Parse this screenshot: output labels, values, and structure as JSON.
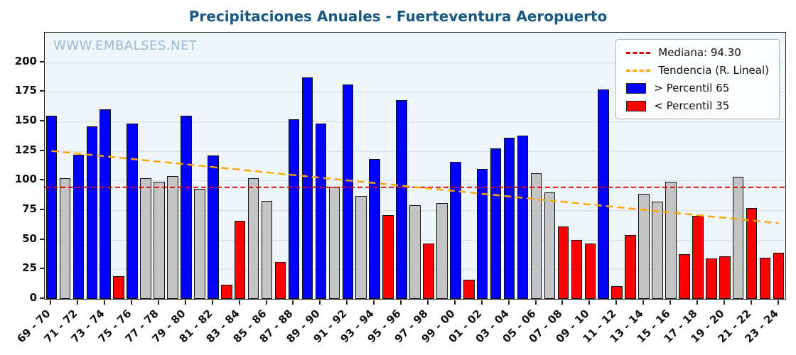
{
  "title": "Precipitaciones Anuales - Fuerteventura Aeropuerto",
  "watermark": "WWW.EMBALSES.NET",
  "legend": {
    "median_label": "Mediana: 94.30",
    "trend_label": "Tendencia (R. Lineal)",
    "above_label": "> Percentil 65",
    "below_label": "< Percentil 35"
  },
  "colors": {
    "above": "#0000ff",
    "below": "#ff0000",
    "normal": "#c4c4c4",
    "median_line": "#e00000",
    "trend_line": "#ffa500",
    "title": "#19587f",
    "watermark": "#7fa8c4",
    "plot_background": "#eef6f9"
  },
  "chart_data": {
    "type": "bar",
    "title": "Precipitaciones Anuales - Fuerteventura Aeropuerto",
    "xlabel": "",
    "ylabel": "",
    "ylim": [
      0,
      225
    ],
    "yticks": [
      0,
      25,
      50,
      75,
      100,
      125,
      150,
      175,
      200
    ],
    "grid": "horizontal",
    "legend_position": "upper right",
    "median": 94.3,
    "trend_line": {
      "y_start": 125,
      "y_end": 64
    },
    "x_tick_labels": [
      "69 - 70",
      "71 - 72",
      "73 - 74",
      "75 - 76",
      "77 - 78",
      "79 - 80",
      "81 - 82",
      "83 - 84",
      "85 - 86",
      "87 - 88",
      "89 - 90",
      "91 - 92",
      "93 - 94",
      "95 - 96",
      "97 - 98",
      "99 - 00",
      "01 - 02",
      "03 - 04",
      "05 - 06",
      "07 - 08",
      "09 - 10",
      "11 - 12",
      "13 - 14",
      "15 - 16",
      "17 - 18",
      "19 - 20",
      "21 - 22",
      "23 - 24"
    ],
    "x_tick_every_n_bars": 2,
    "values": [
      155,
      102,
      122,
      146,
      160,
      19,
      148,
      102,
      99,
      104,
      155,
      93,
      121,
      12,
      66,
      102,
      83,
      31,
      152,
      187,
      148,
      95,
      181,
      87,
      118,
      71,
      168,
      79,
      47,
      81,
      116,
      16,
      110,
      127,
      136,
      138,
      106,
      90,
      61,
      50,
      47,
      177,
      11,
      54,
      89,
      82,
      99,
      38,
      70,
      34,
      36,
      103,
      77,
      35,
      39
    ],
    "classes": [
      "above",
      "normal",
      "above",
      "above",
      "above",
      "below",
      "above",
      "normal",
      "normal",
      "normal",
      "above",
      "normal",
      "above",
      "below",
      "below",
      "normal",
      "normal",
      "below",
      "above",
      "above",
      "above",
      "normal",
      "above",
      "normal",
      "above",
      "below",
      "above",
      "normal",
      "below",
      "normal",
      "above",
      "below",
      "above",
      "above",
      "above",
      "above",
      "normal",
      "normal",
      "below",
      "below",
      "below",
      "above",
      "below",
      "below",
      "normal",
      "normal",
      "normal",
      "below",
      "below",
      "below",
      "below",
      "normal",
      "below",
      "below",
      "below"
    ]
  }
}
